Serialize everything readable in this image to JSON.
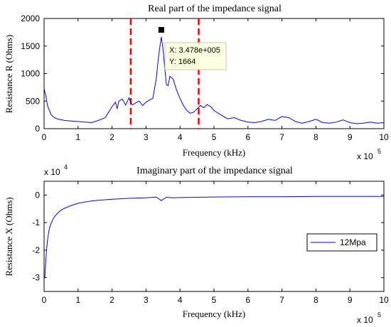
{
  "chart_data": [
    {
      "type": "line",
      "title": "Real part of the impedance signal",
      "xlabel": "Frequency (kHz)",
      "ylabel": "Resistance R (Ohms)",
      "x_exponent_label": "x 10",
      "x_exponent_power": "5",
      "xlim": [
        0,
        10
      ],
      "ylim": [
        0,
        2000
      ],
      "xticks": [
        "0",
        "1",
        "2",
        "3",
        "4",
        "5",
        "6",
        "7",
        "8",
        "9",
        "10"
      ],
      "yticks": [
        "0",
        "500",
        "1000",
        "1500",
        "2000"
      ],
      "line_color": "#0000ff",
      "marker_color": "#ff0000",
      "vertical_markers_x": [
        2.55,
        4.55
      ],
      "datatip": {
        "x": 3.45,
        "y": 1664,
        "x_text": "X: 3.478e+005",
        "y_text": "Y: 1664"
      },
      "series": [
        {
          "x": [
            0.0,
            0.05,
            0.1,
            0.2,
            0.3,
            0.4,
            0.6,
            0.8,
            1.0,
            1.2,
            1.4,
            1.6,
            1.8,
            1.9,
            2.0,
            2.1,
            2.15,
            2.2,
            2.3,
            2.4,
            2.5,
            2.55,
            2.6,
            2.7,
            2.8,
            2.9,
            3.0,
            3.1,
            3.2,
            3.25,
            3.3,
            3.35,
            3.4,
            3.45,
            3.5,
            3.55,
            3.6,
            3.65,
            3.7,
            3.8,
            3.9,
            4.0,
            4.1,
            4.2,
            4.3,
            4.4,
            4.5,
            4.6,
            4.7,
            4.8,
            4.9,
            5.0,
            5.2,
            5.4,
            5.6,
            5.8,
            6.0,
            6.2,
            6.4,
            6.6,
            6.8,
            7.0,
            7.2,
            7.4,
            7.6,
            7.8,
            8.0,
            8.2,
            8.4,
            8.6,
            8.8,
            9.0,
            9.2,
            9.4,
            9.6,
            9.8,
            10.0
          ],
          "y": [
            730,
            600,
            420,
            260,
            200,
            175,
            150,
            140,
            130,
            120,
            110,
            150,
            200,
            300,
            400,
            480,
            360,
            500,
            540,
            430,
            560,
            480,
            430,
            470,
            500,
            420,
            480,
            520,
            550,
            720,
            900,
            1200,
            1450,
            1664,
            1450,
            1100,
            800,
            780,
            950,
            900,
            700,
            550,
            420,
            330,
            280,
            300,
            360,
            420,
            380,
            440,
            400,
            330,
            250,
            180,
            200,
            150,
            120,
            110,
            130,
            170,
            150,
            220,
            200,
            130,
            100,
            130,
            170,
            110,
            100,
            120,
            160,
            110,
            90,
            100,
            120,
            100,
            110
          ]
        }
      ]
    },
    {
      "type": "line",
      "title": "Imaginary part of the impedance signal",
      "xlabel": "Frequency (kHz)",
      "ylabel": "Resistance X (Ohms)",
      "x_exponent_label": "x 10",
      "x_exponent_power": "5",
      "y_exponent_label": "x 10",
      "y_exponent_power": "4",
      "xlim": [
        0,
        10
      ],
      "ylim": [
        -3.5,
        0.5
      ],
      "xticks": [
        "0",
        "1",
        "2",
        "3",
        "4",
        "5",
        "6",
        "7",
        "8",
        "9",
        "10"
      ],
      "yticks": [
        "-3",
        "-2",
        "-1",
        "0"
      ],
      "line_color": "#0000ff",
      "legend": {
        "position": "right",
        "entries": [
          "12Mpa"
        ]
      },
      "series": [
        {
          "name": "12Mpa",
          "x": [
            0.02,
            0.04,
            0.06,
            0.08,
            0.1,
            0.13,
            0.16,
            0.2,
            0.25,
            0.3,
            0.4,
            0.5,
            0.6,
            0.8,
            1.0,
            1.2,
            1.5,
            2.0,
            2.5,
            3.0,
            3.3,
            3.45,
            3.6,
            3.8,
            4.0,
            4.5,
            5.0,
            6.0,
            7.0,
            8.0,
            9.0,
            10.0
          ],
          "y": [
            -3.0,
            -2.6,
            -2.2,
            -1.9,
            -1.65,
            -1.4,
            -1.2,
            -1.05,
            -0.9,
            -0.8,
            -0.65,
            -0.55,
            -0.48,
            -0.38,
            -0.3,
            -0.25,
            -0.2,
            -0.15,
            -0.12,
            -0.1,
            -0.07,
            -0.2,
            -0.08,
            -0.1,
            -0.09,
            -0.08,
            -0.07,
            -0.06,
            -0.06,
            -0.05,
            -0.05,
            -0.05
          ]
        }
      ]
    }
  ]
}
